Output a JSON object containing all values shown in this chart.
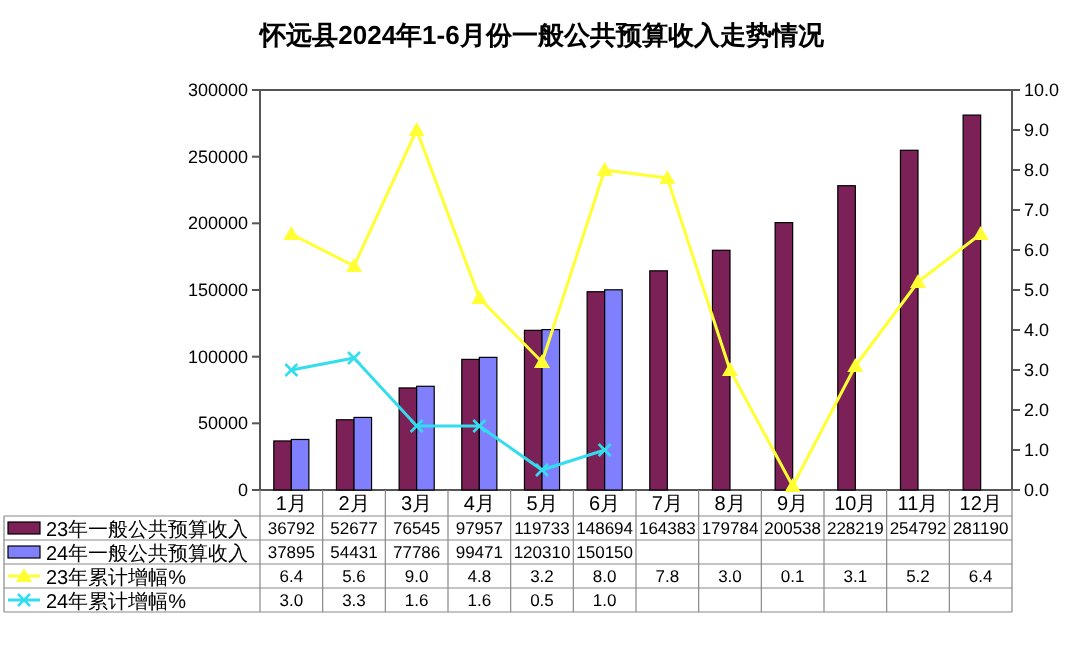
{
  "chart_data": {
    "type": "bar",
    "title": "怀远县2024年1-6月份一般公共预算收入走势情况",
    "categories": [
      "1月",
      "2月",
      "3月",
      "4月",
      "5月",
      "6月",
      "7月",
      "8月",
      "9月",
      "10月",
      "11月",
      "12月"
    ],
    "series": [
      {
        "name": "23年一般公共预算收入",
        "color": "#7b2157",
        "values": [
          36792,
          52677,
          76545,
          97957,
          119733,
          148694,
          164383,
          179784,
          200538,
          228219,
          254792,
          281190
        ],
        "value_labels": [
          "36792",
          "52677",
          "76545",
          "97957",
          "119733",
          "148694",
          "164383",
          "179784",
          "200538",
          "228219",
          "254792",
          "281190"
        ]
      },
      {
        "name": "24年一般公共预算收入",
        "color": "#8080ff",
        "values": [
          37895,
          54431,
          77786,
          99471,
          120310,
          150150,
          null,
          null,
          null,
          null,
          null,
          null
        ],
        "value_labels": [
          "37895",
          "54431",
          "77786",
          "99471",
          "120310",
          "150150",
          null,
          null,
          null,
          null,
          null,
          null
        ]
      },
      {
        "name": "23年累计增幅%",
        "type": "line",
        "axis": "y2",
        "color": "#ffff33",
        "marker": "triangle",
        "values": [
          6.4,
          5.6,
          9.0,
          4.8,
          3.2,
          8.0,
          7.8,
          3.0,
          0.1,
          3.1,
          5.2,
          6.4
        ],
        "value_labels": [
          "6.4",
          "5.6",
          "9.0",
          "4.8",
          "3.2",
          "8.0",
          "7.8",
          "3.0",
          "0.1",
          "3.1",
          "5.2",
          "6.4"
        ]
      },
      {
        "name": "24年累计增幅%",
        "type": "line",
        "axis": "y2",
        "color": "#33ddee",
        "marker": "cross",
        "values": [
          3.0,
          3.3,
          1.6,
          1.6,
          0.5,
          1.0,
          null,
          null,
          null,
          null,
          null,
          null
        ],
        "value_labels": [
          "3.0",
          "3.3",
          "1.6",
          "1.6",
          "0.5",
          "1.0",
          null,
          null,
          null,
          null,
          null,
          null
        ]
      }
    ],
    "ylim": [
      0,
      300000
    ],
    "yticks": [
      0,
      50000,
      100000,
      150000,
      200000,
      250000,
      300000
    ],
    "y2lim": [
      0,
      10
    ],
    "y2ticks": [
      {
        "value": 0,
        "label": "0.0"
      },
      {
        "value": 1,
        "label": "1.0"
      },
      {
        "value": 2,
        "label": "2.0"
      },
      {
        "value": 3,
        "label": "3.0"
      },
      {
        "value": 4,
        "label": "4.0"
      },
      {
        "value": 5,
        "label": "5.0"
      },
      {
        "value": 6,
        "label": "6.0"
      },
      {
        "value": 7,
        "label": "7.0"
      },
      {
        "value": 8,
        "label": "8.0"
      },
      {
        "value": 9,
        "label": "9.0"
      },
      {
        "value": 10,
        "label": "10.0"
      }
    ],
    "grid": false,
    "legend": "bottom left"
  }
}
